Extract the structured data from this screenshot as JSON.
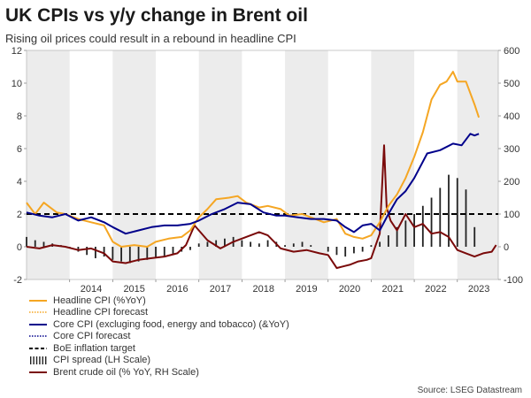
{
  "title": "UK CPIs vs y/y change in Brent oil",
  "subtitle": "Rising oil prices could result in a rebound in headline CPI",
  "source": "Source: LSEG Datastream",
  "chart_data": {
    "type": "line",
    "x_axis": {
      "min": 2013.0,
      "max": 2023.95,
      "tick_labels": [
        "2014",
        "2015",
        "2016",
        "2017",
        "2018",
        "2019",
        "2020",
        "2021",
        "2022",
        "2023"
      ]
    },
    "y_left": {
      "min": -2,
      "max": 12,
      "ticks": [
        -2,
        0,
        2,
        4,
        6,
        8,
        10,
        12
      ]
    },
    "y_right": {
      "min": -100,
      "max": 600,
      "ticks": [
        -100,
        0,
        100,
        200,
        300,
        400,
        500,
        600
      ]
    },
    "shaded_years": [
      2013,
      2015,
      2017,
      2019,
      2021,
      2023
    ],
    "legend": [
      {
        "label": "Headline CPI (%YoY)",
        "color": "#f5a623",
        "style": "solid"
      },
      {
        "label": "Headline CPI forecast",
        "color": "#f5a623",
        "style": "dotted"
      },
      {
        "label": "Core CPI (excluging food, energy and tobacco) (&YoY)",
        "color": "#00008b",
        "style": "solid"
      },
      {
        "label": "Core CPI forecast",
        "color": "#00008b",
        "style": "dotted"
      },
      {
        "label": "BoE inflation target",
        "color": "#000000",
        "style": "dashed"
      },
      {
        "label": "CPI spread (LH Scale)",
        "color": "#222222",
        "style": "bars"
      },
      {
        "label": "Brent crude oil (% YoY, RH Scale)",
        "color": "#7a0a0a",
        "style": "solid"
      }
    ],
    "series": [
      {
        "name": "Headline CPI (%YoY)",
        "axis": "left",
        "color": "#f5a623",
        "x": [
          2013.0,
          2013.2,
          2013.4,
          2013.7,
          2013.9,
          2014.2,
          2014.5,
          2014.8,
          2015.0,
          2015.2,
          2015.5,
          2015.8,
          2016.0,
          2016.3,
          2016.6,
          2016.8,
          2017.0,
          2017.2,
          2017.4,
          2017.7,
          2017.9,
          2018.1,
          2018.4,
          2018.6,
          2018.9,
          2019.1,
          2019.4,
          2019.7,
          2019.9,
          2020.2,
          2020.4,
          2020.6,
          2020.8,
          2021.0,
          2021.2,
          2021.4,
          2021.6,
          2021.8,
          2022.0,
          2022.2,
          2022.4,
          2022.6,
          2022.75,
          2022.9,
          2023.0,
          2023.2,
          2023.4,
          2023.5
        ],
        "y": [
          2.7,
          2.0,
          2.7,
          2.1,
          2.0,
          1.7,
          1.5,
          1.3,
          0.3,
          0.0,
          0.1,
          0.0,
          0.3,
          0.5,
          0.6,
          1.0,
          1.8,
          2.3,
          2.9,
          3.0,
          3.1,
          2.7,
          2.4,
          2.5,
          2.3,
          1.9,
          2.0,
          1.7,
          1.5,
          1.7,
          0.8,
          0.6,
          0.5,
          0.7,
          1.5,
          2.5,
          3.2,
          4.2,
          5.5,
          7.0,
          9.0,
          9.9,
          10.1,
          10.7,
          10.1,
          10.1,
          8.7,
          7.9
        ]
      },
      {
        "name": "Core CPI",
        "axis": "left",
        "color": "#00008b",
        "x": [
          2013.0,
          2013.3,
          2013.6,
          2013.9,
          2014.2,
          2014.5,
          2014.8,
          2015.0,
          2015.3,
          2015.6,
          2015.9,
          2016.2,
          2016.5,
          2016.8,
          2017.0,
          2017.3,
          2017.6,
          2017.9,
          2018.2,
          2018.5,
          2018.8,
          2019.0,
          2019.3,
          2019.6,
          2019.9,
          2020.2,
          2020.4,
          2020.6,
          2020.8,
          2021.0,
          2021.2,
          2021.4,
          2021.6,
          2021.8,
          2022.0,
          2022.3,
          2022.6,
          2022.9,
          2023.1,
          2023.3,
          2023.4,
          2023.5
        ],
        "y": [
          2.1,
          1.9,
          1.8,
          2.0,
          1.6,
          1.8,
          1.5,
          1.2,
          0.8,
          1.0,
          1.2,
          1.3,
          1.3,
          1.4,
          1.6,
          2.0,
          2.3,
          2.7,
          2.6,
          2.1,
          1.9,
          1.9,
          1.8,
          1.7,
          1.7,
          1.6,
          1.2,
          0.9,
          1.3,
          1.4,
          1.0,
          2.0,
          2.9,
          3.4,
          4.2,
          5.7,
          5.9,
          6.3,
          6.2,
          6.9,
          6.8,
          6.9
        ]
      },
      {
        "name": "Brent crude oil (% YoY, RH Scale)",
        "axis": "right",
        "color": "#7a0a0a",
        "x": [
          2013.0,
          2013.3,
          2013.6,
          2013.9,
          2014.2,
          2014.5,
          2014.8,
          2015.0,
          2015.3,
          2015.6,
          2015.9,
          2016.2,
          2016.5,
          2016.7,
          2016.9,
          2017.2,
          2017.5,
          2017.8,
          2018.1,
          2018.4,
          2018.6,
          2018.9,
          2019.2,
          2019.5,
          2019.8,
          2020.0,
          2020.2,
          2020.35,
          2020.5,
          2020.7,
          2020.9,
          2021.0,
          2021.2,
          2021.3,
          2021.36,
          2021.45,
          2021.6,
          2021.8,
          2022.0,
          2022.2,
          2022.4,
          2022.6,
          2022.8,
          2023.0,
          2023.2,
          2023.4,
          2023.6,
          2023.8,
          2023.9
        ],
        "y": [
          0,
          -5,
          5,
          0,
          -10,
          -5,
          -20,
          -45,
          -50,
          -40,
          -35,
          -30,
          -20,
          5,
          65,
          20,
          -5,
          15,
          30,
          45,
          35,
          -5,
          -15,
          -10,
          -20,
          -25,
          -65,
          -60,
          -55,
          -45,
          -40,
          -35,
          40,
          310,
          120,
          80,
          50,
          100,
          60,
          70,
          40,
          45,
          30,
          -10,
          -20,
          -30,
          -20,
          -15,
          5
        ]
      }
    ],
    "bars": {
      "name": "CPI spread (LH Scale)",
      "axis": "left",
      "color": "#222222",
      "x": [
        2013.0,
        2013.2,
        2013.4,
        2013.6,
        2013.8,
        2014.0,
        2014.2,
        2014.4,
        2014.6,
        2014.8,
        2015.0,
        2015.2,
        2015.4,
        2015.6,
        2015.8,
        2016.0,
        2016.2,
        2016.4,
        2016.6,
        2016.8,
        2017.0,
        2017.2,
        2017.4,
        2017.6,
        2017.8,
        2018.0,
        2018.2,
        2018.4,
        2018.6,
        2018.8,
        2019.0,
        2019.2,
        2019.4,
        2019.6,
        2019.8,
        2020.0,
        2020.2,
        2020.4,
        2020.6,
        2020.8,
        2021.0,
        2021.2,
        2021.4,
        2021.6,
        2021.8,
        2022.0,
        2022.2,
        2022.4,
        2022.6,
        2022.8,
        2023.0,
        2023.2,
        2023.4
      ],
      "y": [
        0.6,
        0.4,
        0.3,
        0.2,
        0.1,
        -0.1,
        -0.3,
        -0.5,
        -0.7,
        -0.6,
        -0.8,
        -0.9,
        -1.0,
        -0.9,
        -0.8,
        -0.7,
        -0.6,
        -0.5,
        -0.3,
        -0.2,
        0.2,
        0.3,
        0.4,
        0.5,
        0.6,
        0.4,
        0.3,
        0.2,
        0.4,
        0.3,
        0.1,
        0.2,
        0.3,
        0.1,
        0.0,
        -0.3,
        -0.5,
        -0.6,
        -0.4,
        -0.3,
        0.1,
        0.3,
        0.7,
        1.2,
        1.6,
        2.0,
        2.5,
        3.0,
        3.6,
        4.4,
        4.2,
        3.5,
        1.2
      ]
    },
    "target": {
      "name": "BoE inflation target",
      "axis": "left",
      "value": 2
    }
  }
}
